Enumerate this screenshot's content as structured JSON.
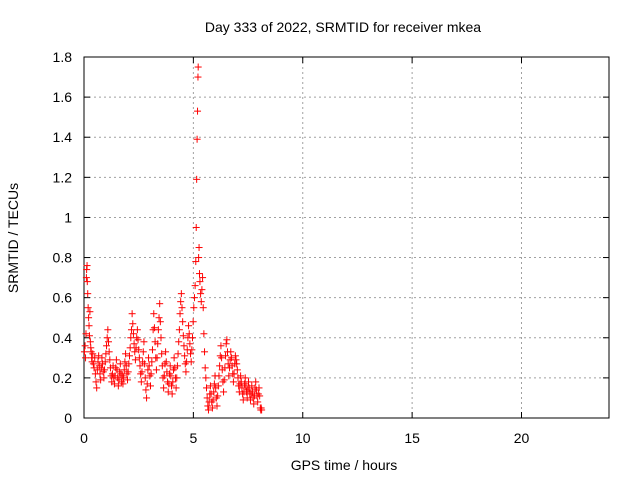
{
  "chart_data": {
    "type": "scatter",
    "title": "Day 333 of 2022, SRMTID for receiver mkea",
    "xlabel": "GPS time / hours",
    "ylabel": "SRMTID / TECUs",
    "xlim": [
      0,
      24
    ],
    "ylim": [
      0,
      1.8
    ],
    "xticks": [
      0,
      5,
      10,
      15,
      20
    ],
    "yticks": [
      0,
      0.2,
      0.4,
      0.6,
      0.8,
      1,
      1.2,
      1.4,
      1.6,
      1.8
    ],
    "xtick_labels": [
      "0",
      "5",
      "10",
      "15",
      "20"
    ],
    "ytick_labels": [
      "0",
      "0.2",
      "0.4",
      "0.6",
      "0.8",
      "1",
      "1.2",
      "1.4",
      "1.6",
      "1.8"
    ],
    "grid": true,
    "marker": "+",
    "marker_color": "#ff0000",
    "series": [
      {
        "points": [
          [
            0.02,
            0.33
          ],
          [
            0.05,
            0.36
          ],
          [
            0.07,
            0.3
          ],
          [
            0.09,
            0.42
          ],
          [
            0.11,
            0.7
          ],
          [
            0.12,
            0.74
          ],
          [
            0.14,
            0.76
          ],
          [
            0.15,
            0.68
          ],
          [
            0.17,
            0.62
          ],
          [
            0.19,
            0.55
          ],
          [
            0.21,
            0.5
          ],
          [
            0.23,
            0.46
          ],
          [
            0.25,
            0.41
          ],
          [
            0.27,
            0.53
          ],
          [
            0.29,
            0.38
          ],
          [
            0.31,
            0.35
          ],
          [
            0.33,
            0.33
          ],
          [
            0.35,
            0.3
          ],
          [
            0.37,
            0.28
          ],
          [
            0.4,
            0.32
          ],
          [
            0.43,
            0.27
          ],
          [
            0.46,
            0.25
          ],
          [
            0.49,
            0.3
          ],
          [
            0.52,
            0.22
          ],
          [
            0.55,
            0.18
          ],
          [
            0.58,
            0.15
          ],
          [
            0.61,
            0.24
          ],
          [
            0.64,
            0.28
          ],
          [
            0.67,
            0.31
          ],
          [
            0.7,
            0.26
          ],
          [
            0.73,
            0.22
          ],
          [
            0.76,
            0.19
          ],
          [
            0.79,
            0.25
          ],
          [
            0.82,
            0.3
          ],
          [
            0.85,
            0.27
          ],
          [
            0.88,
            0.23
          ],
          [
            0.91,
            0.2
          ],
          [
            0.94,
            0.24
          ],
          [
            0.97,
            0.28
          ],
          [
            1.0,
            0.32
          ],
          [
            1.03,
            0.36
          ],
          [
            1.06,
            0.4
          ],
          [
            1.09,
            0.44
          ],
          [
            1.12,
            0.38
          ],
          [
            1.15,
            0.33
          ],
          [
            1.18,
            0.29
          ],
          [
            1.21,
            0.25
          ],
          [
            1.24,
            0.21
          ],
          [
            1.27,
            0.18
          ],
          [
            1.3,
            0.22
          ],
          [
            1.33,
            0.26
          ],
          [
            1.36,
            0.2
          ],
          [
            1.39,
            0.17
          ],
          [
            1.42,
            0.21
          ],
          [
            1.45,
            0.25
          ],
          [
            1.48,
            0.29
          ],
          [
            1.51,
            0.24
          ],
          [
            1.54,
            0.2
          ],
          [
            1.57,
            0.16
          ],
          [
            1.6,
            0.19
          ],
          [
            1.63,
            0.23
          ],
          [
            1.66,
            0.27
          ],
          [
            1.69,
            0.22
          ],
          [
            1.72,
            0.18
          ],
          [
            1.75,
            0.21
          ],
          [
            1.78,
            0.17
          ],
          [
            1.81,
            0.2
          ],
          [
            1.84,
            0.24
          ],
          [
            1.87,
            0.28
          ],
          [
            1.9,
            0.32
          ],
          [
            1.93,
            0.26
          ],
          [
            1.96,
            0.22
          ],
          [
            1.99,
            0.19
          ],
          [
            2.02,
            0.23
          ],
          [
            2.05,
            0.27
          ],
          [
            2.08,
            0.31
          ],
          [
            2.11,
            0.35
          ],
          [
            2.14,
            0.4
          ],
          [
            2.17,
            0.44
          ],
          [
            2.2,
            0.52
          ],
          [
            2.23,
            0.47
          ],
          [
            2.26,
            0.42
          ],
          [
            2.29,
            0.37
          ],
          [
            2.32,
            0.33
          ],
          [
            2.35,
            0.29
          ],
          [
            2.38,
            0.35
          ],
          [
            2.41,
            0.4
          ],
          [
            2.44,
            0.44
          ],
          [
            2.47,
            0.39
          ],
          [
            2.5,
            0.34
          ],
          [
            2.53,
            0.3
          ],
          [
            2.56,
            0.26
          ],
          [
            2.59,
            0.22
          ],
          [
            2.62,
            0.18
          ],
          [
            2.65,
            0.23
          ],
          [
            2.68,
            0.28
          ],
          [
            2.71,
            0.33
          ],
          [
            2.74,
            0.38
          ],
          [
            2.77,
            0.27
          ],
          [
            2.8,
            0.2
          ],
          [
            2.83,
            0.14
          ],
          [
            2.86,
            0.1
          ],
          [
            2.89,
            0.17
          ],
          [
            2.92,
            0.24
          ],
          [
            2.95,
            0.3
          ],
          [
            2.98,
            0.26
          ],
          [
            3.01,
            0.21
          ],
          [
            3.04,
            0.16
          ],
          [
            3.07,
            0.22
          ],
          [
            3.1,
            0.28
          ],
          [
            3.13,
            0.34
          ],
          [
            3.16,
            0.44
          ],
          [
            3.19,
            0.52
          ],
          [
            3.22,
            0.45
          ],
          [
            3.25,
            0.38
          ],
          [
            3.28,
            0.3
          ],
          [
            3.31,
            0.24
          ],
          [
            3.34,
            0.3
          ],
          [
            3.37,
            0.37
          ],
          [
            3.4,
            0.44
          ],
          [
            3.43,
            0.5
          ],
          [
            3.46,
            0.57
          ],
          [
            3.49,
            0.48
          ],
          [
            3.52,
            0.4
          ],
          [
            3.55,
            0.32
          ],
          [
            3.58,
            0.26
          ],
          [
            3.61,
            0.2
          ],
          [
            3.64,
            0.15
          ],
          [
            3.67,
            0.21
          ],
          [
            3.7,
            0.27
          ],
          [
            3.73,
            0.33
          ],
          [
            3.76,
            0.28
          ],
          [
            3.79,
            0.23
          ],
          [
            3.82,
            0.18
          ],
          [
            3.85,
            0.13
          ],
          [
            3.88,
            0.17
          ],
          [
            3.91,
            0.22
          ],
          [
            3.94,
            0.26
          ],
          [
            3.97,
            0.21
          ],
          [
            4.0,
            0.16
          ],
          [
            4.03,
            0.12
          ],
          [
            4.06,
            0.18
          ],
          [
            4.09,
            0.24
          ],
          [
            4.12,
            0.3
          ],
          [
            4.15,
            0.25
          ],
          [
            4.18,
            0.2
          ],
          [
            4.21,
            0.15
          ],
          [
            4.24,
            0.2
          ],
          [
            4.27,
            0.26
          ],
          [
            4.3,
            0.32
          ],
          [
            4.33,
            0.38
          ],
          [
            4.36,
            0.44
          ],
          [
            4.39,
            0.52
          ],
          [
            4.42,
            0.58
          ],
          [
            4.45,
            0.62
          ],
          [
            4.48,
            0.55
          ],
          [
            4.51,
            0.48
          ],
          [
            4.54,
            0.41
          ],
          [
            4.57,
            0.36
          ],
          [
            4.6,
            0.31
          ],
          [
            4.63,
            0.27
          ],
          [
            4.66,
            0.23
          ],
          [
            4.69,
            0.28
          ],
          [
            4.72,
            0.34
          ],
          [
            4.75,
            0.4
          ],
          [
            4.78,
            0.46
          ],
          [
            4.81,
            0.42
          ],
          [
            4.84,
            0.37
          ],
          [
            4.87,
            0.32
          ],
          [
            4.9,
            0.28
          ],
          [
            4.93,
            0.34
          ],
          [
            4.96,
            0.4
          ],
          [
            4.99,
            0.48
          ],
          [
            5.02,
            0.55
          ],
          [
            5.05,
            0.6
          ],
          [
            5.08,
            0.66
          ],
          [
            5.11,
            0.78
          ],
          [
            5.13,
            0.95
          ],
          [
            5.15,
            1.19
          ],
          [
            5.17,
            1.39
          ],
          [
            5.19,
            1.53
          ],
          [
            5.21,
            1.7
          ],
          [
            5.22,
            1.75
          ],
          [
            5.24,
            0.8
          ],
          [
            5.26,
            0.85
          ],
          [
            5.28,
            0.72
          ],
          [
            5.3,
            0.68
          ],
          [
            5.33,
            0.62
          ],
          [
            5.36,
            0.58
          ],
          [
            5.39,
            0.64
          ],
          [
            5.42,
            0.7
          ],
          [
            5.45,
            0.55
          ],
          [
            5.48,
            0.42
          ],
          [
            5.51,
            0.33
          ],
          [
            5.54,
            0.25
          ],
          [
            5.57,
            0.2
          ],
          [
            5.6,
            0.15
          ],
          [
            5.63,
            0.1
          ],
          [
            5.66,
            0.06
          ],
          [
            5.69,
            0.04
          ],
          [
            5.72,
            0.08
          ],
          [
            5.75,
            0.12
          ],
          [
            5.78,
            0.16
          ],
          [
            5.81,
            0.12
          ],
          [
            5.84,
            0.08
          ],
          [
            5.87,
            0.05
          ],
          [
            5.9,
            0.09
          ],
          [
            5.93,
            0.13
          ],
          [
            5.96,
            0.17
          ],
          [
            5.99,
            0.21
          ],
          [
            6.02,
            0.15
          ],
          [
            6.05,
            0.1
          ],
          [
            6.08,
            0.06
          ],
          [
            6.11,
            0.11
          ],
          [
            6.14,
            0.16
          ],
          [
            6.17,
            0.21
          ],
          [
            6.2,
            0.26
          ],
          [
            6.23,
            0.31
          ],
          [
            6.26,
            0.36
          ],
          [
            6.29,
            0.3
          ],
          [
            6.32,
            0.24
          ],
          [
            6.35,
            0.18
          ],
          [
            6.38,
            0.13
          ],
          [
            6.41,
            0.19
          ],
          [
            6.44,
            0.25
          ],
          [
            6.47,
            0.31
          ],
          [
            6.5,
            0.37
          ],
          [
            6.53,
            0.39
          ],
          [
            6.56,
            0.33
          ],
          [
            6.59,
            0.27
          ],
          [
            6.62,
            0.21
          ],
          [
            6.65,
            0.25
          ],
          [
            6.68,
            0.29
          ],
          [
            6.71,
            0.33
          ],
          [
            6.74,
            0.3
          ],
          [
            6.77,
            0.26
          ],
          [
            6.8,
            0.22
          ],
          [
            6.83,
            0.18
          ],
          [
            6.86,
            0.22
          ],
          [
            6.89,
            0.27
          ],
          [
            6.92,
            0.31
          ],
          [
            6.95,
            0.29
          ],
          [
            6.98,
            0.27
          ],
          [
            7.01,
            0.24
          ],
          [
            7.04,
            0.2
          ],
          [
            7.07,
            0.16
          ],
          [
            7.1,
            0.13
          ],
          [
            7.13,
            0.17
          ],
          [
            7.16,
            0.21
          ],
          [
            7.19,
            0.18
          ],
          [
            7.22,
            0.15
          ],
          [
            7.25,
            0.12
          ],
          [
            7.28,
            0.09
          ],
          [
            7.31,
            0.13
          ],
          [
            7.34,
            0.17
          ],
          [
            7.37,
            0.2
          ],
          [
            7.4,
            0.16
          ],
          [
            7.43,
            0.13
          ],
          [
            7.46,
            0.1
          ],
          [
            7.49,
            0.14
          ],
          [
            7.52,
            0.18
          ],
          [
            7.55,
            0.15
          ],
          [
            7.58,
            0.12
          ],
          [
            7.61,
            0.09
          ],
          [
            7.64,
            0.12
          ],
          [
            7.67,
            0.16
          ],
          [
            7.7,
            0.13
          ],
          [
            7.73,
            0.1
          ],
          [
            7.76,
            0.07
          ],
          [
            7.79,
            0.11
          ],
          [
            7.82,
            0.15
          ],
          [
            7.85,
            0.18
          ],
          [
            7.88,
            0.14
          ],
          [
            7.91,
            0.11
          ],
          [
            7.94,
            0.08
          ],
          [
            7.97,
            0.12
          ],
          [
            8.0,
            0.15
          ],
          [
            8.03,
            0.11
          ],
          [
            8.06,
            0.05
          ],
          [
            8.08,
            0.04
          ],
          [
            8.1,
            0.05
          ],
          [
            8.12,
            0.04
          ]
        ]
      }
    ]
  }
}
